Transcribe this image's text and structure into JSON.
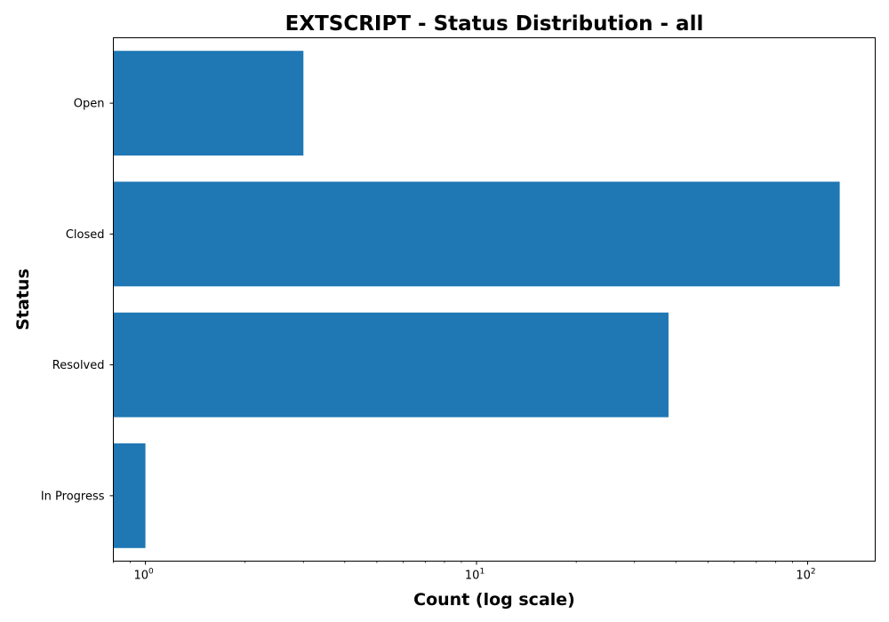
{
  "chart_data": {
    "type": "bar",
    "orientation": "horizontal",
    "title": "EXTSCRIPT - Status Distribution - all",
    "xlabel": "Count (log scale)",
    "ylabel": "Status",
    "xscale": "log",
    "xlim": [
      0.8,
      160
    ],
    "xticks": [
      {
        "base": "10",
        "exp": "0"
      },
      {
        "base": "10",
        "exp": "1"
      },
      {
        "base": "10",
        "exp": "2"
      }
    ],
    "categories": [
      "Open",
      "Closed",
      "Resolved",
      "In Progress"
    ],
    "values": [
      3,
      125,
      38,
      1
    ],
    "bar_color": "#1f77b4",
    "grid": false,
    "legend": "none"
  }
}
